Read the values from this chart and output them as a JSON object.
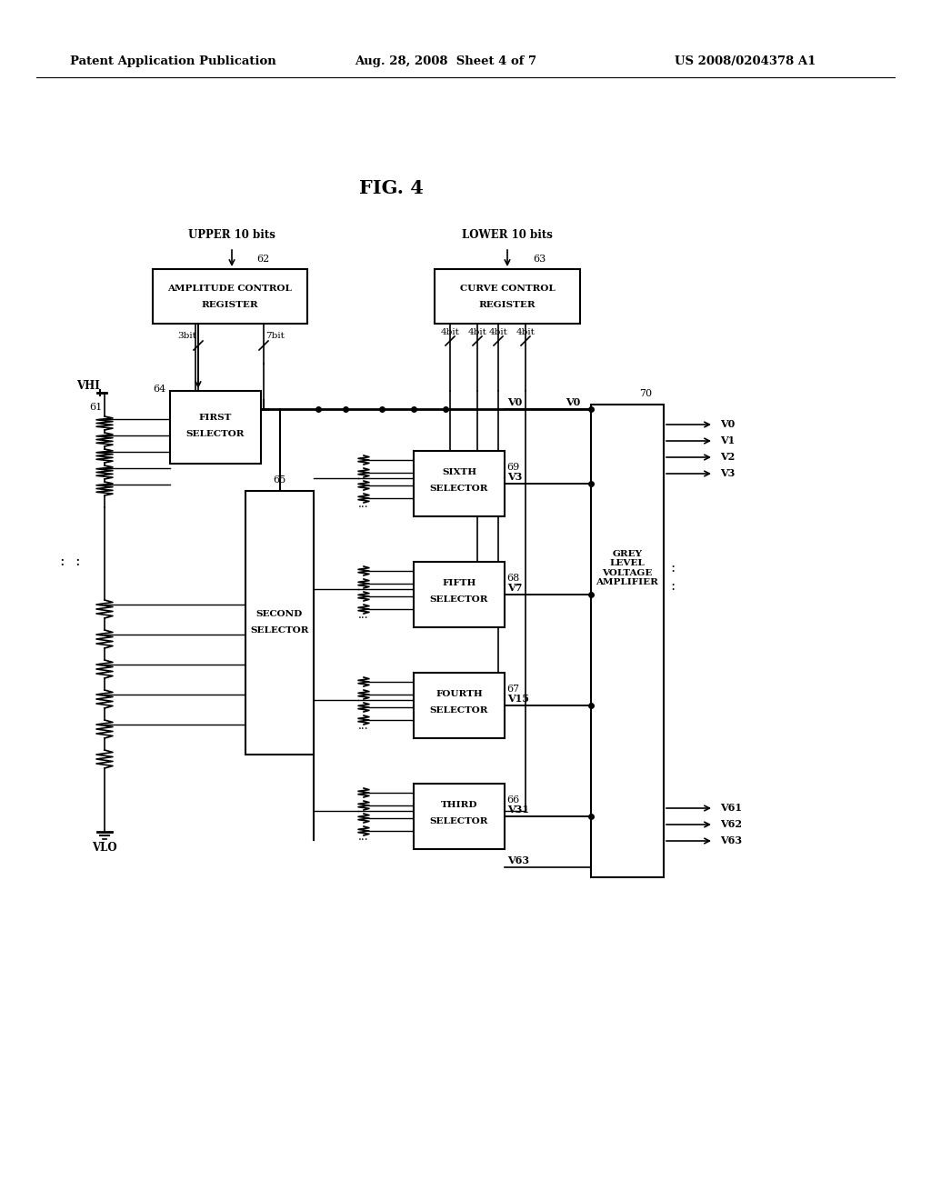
{
  "background_color": "#ffffff",
  "header_left": "Patent Application Publication",
  "header_center": "Aug. 28, 2008  Sheet 4 of 7",
  "header_right": "US 2008/0204378 A1",
  "fig_label": "FIG. 4"
}
